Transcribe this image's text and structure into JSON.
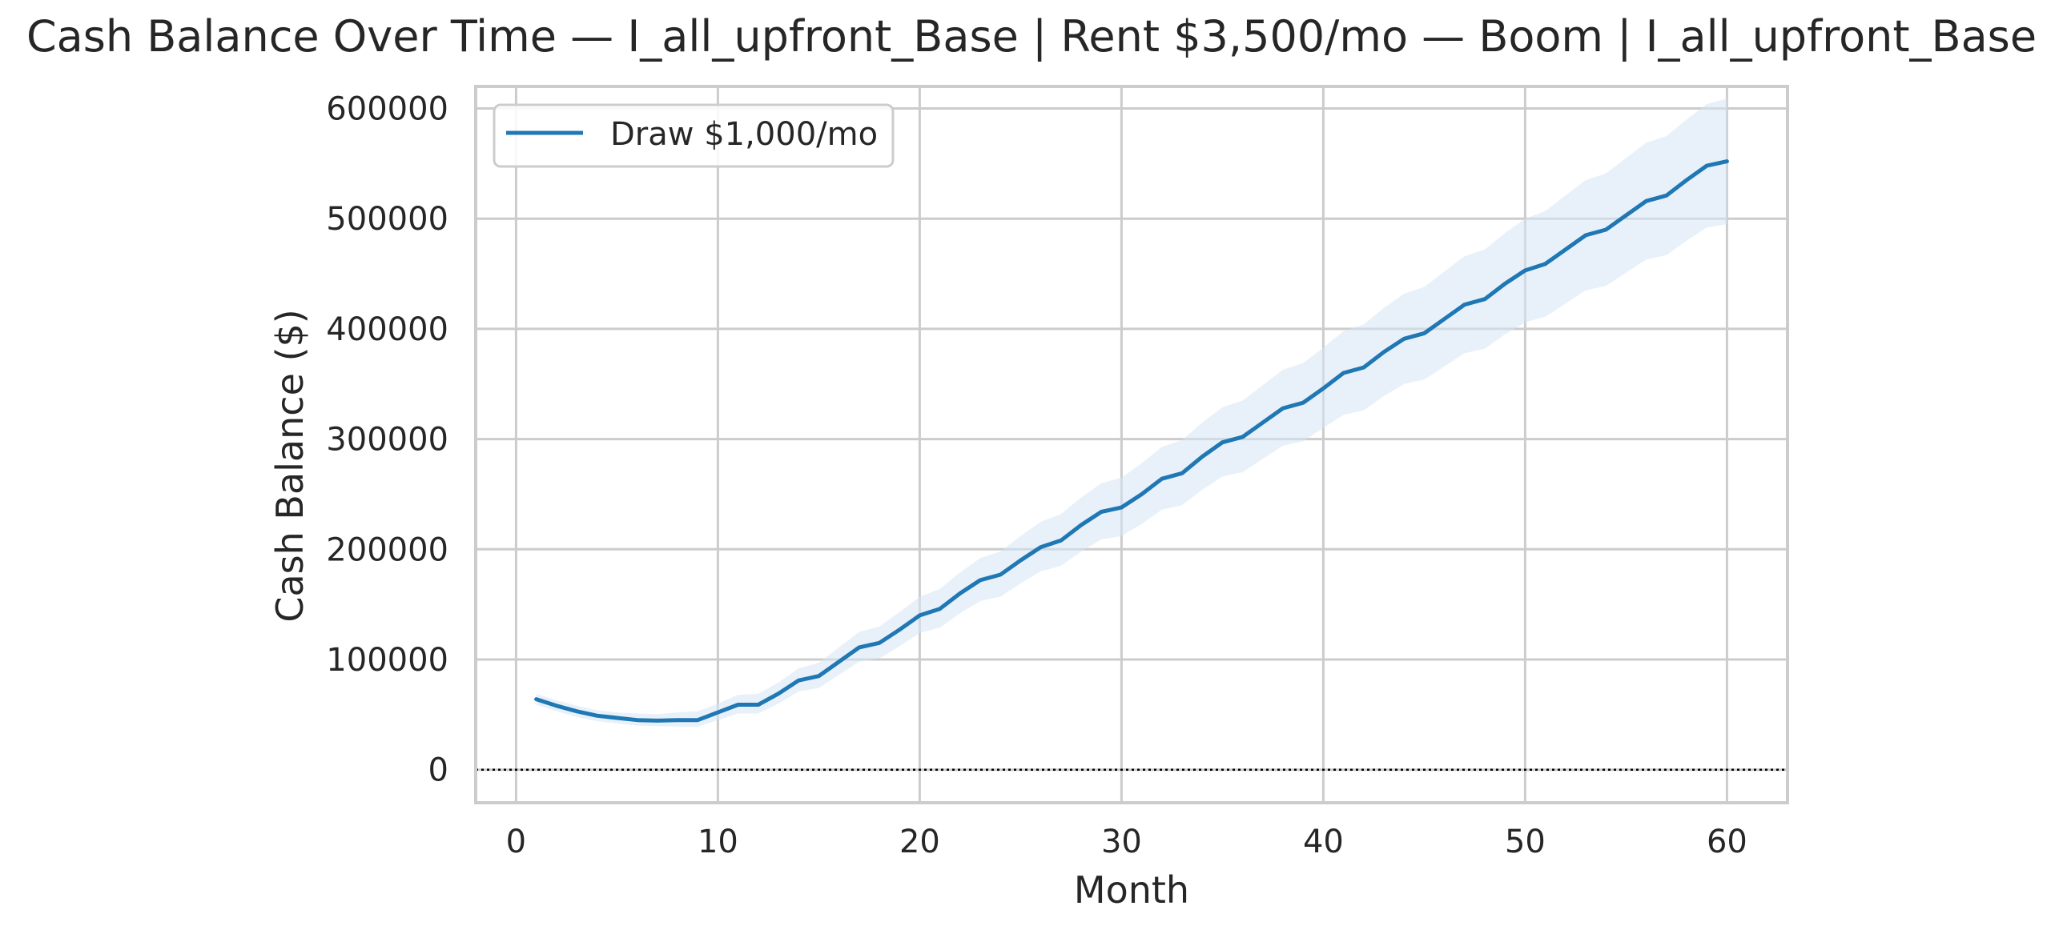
{
  "chart_data": {
    "type": "line",
    "title": "Cash Balance Over Time — I_all_upfront_Base | Rent $3,500/mo — Boom | I_all_upfront_Base",
    "xlabel": "Month",
    "ylabel": "Cash Balance ($)",
    "xlim": [
      -2,
      63
    ],
    "ylim": [
      -30000,
      620000
    ],
    "xticks": [
      0,
      10,
      20,
      30,
      40,
      50,
      60
    ],
    "yticks": [
      0,
      100000,
      200000,
      300000,
      400000,
      500000,
      600000
    ],
    "grid": true,
    "legend_position": "top-left",
    "reference_line": {
      "y": 0,
      "style": "dotted",
      "color": "#000000"
    },
    "series": [
      {
        "name": "Draw $1,000/mo",
        "color": "#1f77b4",
        "band_color": "#d6e6f4",
        "x": [
          1,
          2,
          3,
          4,
          5,
          6,
          7,
          8,
          9,
          10,
          11,
          12,
          13,
          14,
          15,
          16,
          17,
          18,
          19,
          20,
          21,
          22,
          23,
          24,
          25,
          26,
          27,
          28,
          29,
          30,
          31,
          32,
          33,
          34,
          35,
          36,
          37,
          38,
          39,
          40,
          41,
          42,
          43,
          44,
          45,
          46,
          47,
          48,
          49,
          50,
          51,
          52,
          53,
          54,
          55,
          56,
          57,
          58,
          59,
          60
        ],
        "values": [
          64000,
          58000,
          53000,
          49000,
          47000,
          45000,
          44500,
          45000,
          45000,
          52000,
          59000,
          59000,
          69000,
          81000,
          85000,
          98000,
          111000,
          115000,
          127000,
          140000,
          146000,
          160000,
          172000,
          177000,
          190000,
          202000,
          208000,
          222000,
          234000,
          238000,
          250000,
          264000,
          269000,
          284000,
          297000,
          302000,
          315000,
          328000,
          333000,
          346000,
          360000,
          365000,
          379000,
          391000,
          396000,
          409000,
          422000,
          427000,
          441000,
          453000,
          459000,
          472000,
          485000,
          490000,
          503000,
          516000,
          521000,
          535000,
          548000,
          552000
        ],
        "lower": [
          59000,
          53000,
          48000,
          44000,
          42000,
          40000,
          39500,
          39000,
          39000,
          45000,
          51000,
          51000,
          60000,
          71000,
          74000,
          86000,
          98000,
          101000,
          112000,
          124000,
          129000,
          142000,
          153000,
          157000,
          169000,
          180000,
          185000,
          198000,
          209000,
          212000,
          223000,
          236000,
          240000,
          254000,
          266000,
          270000,
          282000,
          294000,
          298000,
          310000,
          322000,
          326000,
          339000,
          350000,
          354000,
          366000,
          378000,
          382000,
          395000,
          406000,
          411000,
          423000,
          435000,
          439000,
          451000,
          463000,
          467000,
          480000,
          492000,
          495000
        ],
        "upper": [
          69000,
          63000,
          58000,
          54000,
          52000,
          51000,
          50500,
          52000,
          53000,
          60000,
          68000,
          69000,
          79000,
          92000,
          97000,
          111000,
          125000,
          130000,
          143000,
          157000,
          164000,
          179000,
          192000,
          198000,
          212000,
          225000,
          232000,
          247000,
          260000,
          265000,
          278000,
          293000,
          299000,
          315000,
          329000,
          335000,
          349000,
          363000,
          369000,
          383000,
          398000,
          404000,
          419000,
          432000,
          438000,
          452000,
          466000,
          472000,
          487000,
          500000,
          507000,
          521000,
          535000,
          541000,
          555000,
          569000,
          575000,
          590000,
          604000,
          609000
        ]
      }
    ]
  }
}
